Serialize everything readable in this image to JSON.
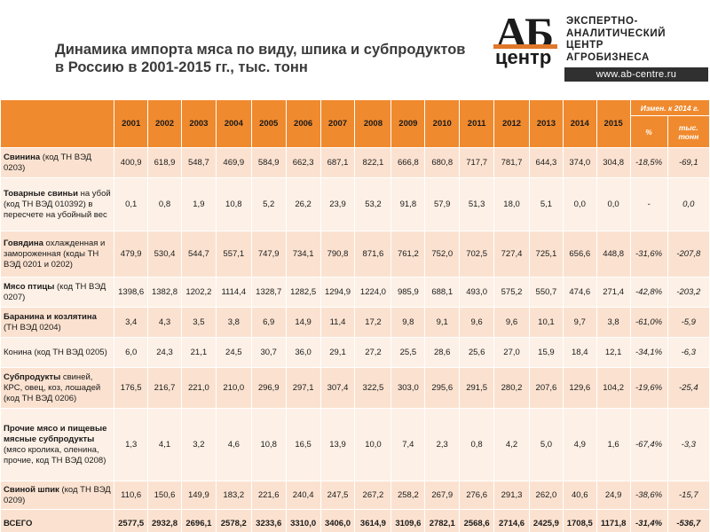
{
  "title": "Динамика импорта мяса по виду, шпика и субпродуктов в Россию в 2001-2015 гг., тыс. тонн",
  "logo": {
    "mark_ab": "АБ",
    "mark_centr": "центр",
    "lines": [
      "ЭКСПЕРТНО-",
      "АНАЛИТИЧЕСКИЙ",
      "ЦЕНТР",
      "АГРОБИЗНЕСА"
    ],
    "url": "www.ab-centre.ru"
  },
  "table": {
    "change_header": "Измен. к 2014 г.",
    "change_sub": [
      "%",
      "тыс. тонн"
    ],
    "years": [
      "2001",
      "2002",
      "2003",
      "2004",
      "2005",
      "2006",
      "2007",
      "2008",
      "2009",
      "2010",
      "2011",
      "2012",
      "2013",
      "2014",
      "2015"
    ],
    "rows": [
      {
        "bold": "Свинина",
        "rest": " (код ТН ВЭД 0203)",
        "values": [
          "400,9",
          "618,9",
          "548,7",
          "469,9",
          "584,9",
          "662,3",
          "687,1",
          "822,1",
          "666,8",
          "680,8",
          "717,7",
          "781,7",
          "644,3",
          "374,0",
          "304,8"
        ],
        "pct": "-18,5%",
        "abs": "-69,1"
      },
      {
        "bold": "Товарные свиньи",
        "rest": " на убой (код ТН ВЭД 010392) в пересчете на убойный вес",
        "values": [
          "0,1",
          "0,8",
          "1,9",
          "10,8",
          "5,2",
          "26,2",
          "23,9",
          "53,2",
          "91,8",
          "57,9",
          "51,3",
          "18,0",
          "5,1",
          "0,0",
          "0,0"
        ],
        "pct": "-",
        "abs": "0,0"
      },
      {
        "bold": "Говядина",
        "rest": " охлажденная и замороженная (коды ТН ВЭД 0201 и 0202)",
        "values": [
          "479,9",
          "530,4",
          "544,7",
          "557,1",
          "747,9",
          "734,1",
          "790,8",
          "871,6",
          "761,2",
          "752,0",
          "702,5",
          "727,4",
          "725,1",
          "656,6",
          "448,8"
        ],
        "pct": "-31,6%",
        "abs": "-207,8"
      },
      {
        "bold": "Мясо птицы",
        "rest": " (код ТН ВЭД 0207)",
        "values": [
          "1398,6",
          "1382,8",
          "1202,2",
          "1114,4",
          "1328,7",
          "1282,5",
          "1294,9",
          "1224,0",
          "985,9",
          "688,1",
          "493,0",
          "575,2",
          "550,7",
          "474,6",
          "271,4"
        ],
        "pct": "-42,8%",
        "abs": "-203,2"
      },
      {
        "bold": "Баранина и козлятина",
        "rest": " (ТН ВЭД 0204)",
        "values": [
          "3,4",
          "4,3",
          "3,5",
          "3,8",
          "6,9",
          "14,9",
          "11,4",
          "17,2",
          "9,8",
          "9,1",
          "9,6",
          "9,6",
          "10,1",
          "9,7",
          "3,8"
        ],
        "pct": "-61,0%",
        "abs": "-5,9"
      },
      {
        "bold": "",
        "rest": "Конина (код ТН ВЭД 0205)",
        "values": [
          "6,0",
          "24,3",
          "21,1",
          "24,5",
          "30,7",
          "36,0",
          "29,1",
          "27,2",
          "25,5",
          "28,6",
          "25,6",
          "27,0",
          "15,9",
          "18,4",
          "12,1"
        ],
        "pct": "-34,1%",
        "abs": "-6,3"
      },
      {
        "bold": "Субпродукты",
        "rest": " свиней, КРС, овец, коз, лошадей (код ТН ВЭД 0206)",
        "values": [
          "176,5",
          "216,7",
          "221,0",
          "210,0",
          "296,9",
          "297,1",
          "307,4",
          "322,5",
          "303,0",
          "295,6",
          "291,5",
          "280,2",
          "207,6",
          "129,6",
          "104,2"
        ],
        "pct": "-19,6%",
        "abs": "-25,4"
      },
      {
        "bold": "Прочие мясо и пищевые мясные субпродукты",
        "rest": " (мясо кролика, оленина, прочие, код ТН ВЭД 0208)",
        "values": [
          "1,3",
          "4,1",
          "3,2",
          "4,6",
          "10,8",
          "16,5",
          "13,9",
          "10,0",
          "7,4",
          "2,3",
          "0,8",
          "4,2",
          "5,0",
          "4,9",
          "1,6"
        ],
        "pct": "-67,4%",
        "abs": "-3,3"
      },
      {
        "bold": "Свиной шпик",
        "rest": " (код ТН ВЭД 0209)",
        "values": [
          "110,6",
          "150,6",
          "149,9",
          "183,2",
          "221,6",
          "240,4",
          "247,5",
          "267,2",
          "258,2",
          "267,9",
          "276,6",
          "291,3",
          "262,0",
          "40,6",
          "24,9"
        ],
        "pct": "-38,6%",
        "abs": "-15,7"
      }
    ],
    "total": {
      "label": "ВСЕГО",
      "values": [
        "2577,5",
        "2932,8",
        "2696,1",
        "2578,2",
        "3233,6",
        "3310,0",
        "3406,0",
        "3614,9",
        "3109,6",
        "2782,1",
        "2568,6",
        "2714,6",
        "2425,9",
        "1708,5",
        "1171,8"
      ],
      "pct": "-31,4%",
      "abs": "-536,7"
    }
  }
}
